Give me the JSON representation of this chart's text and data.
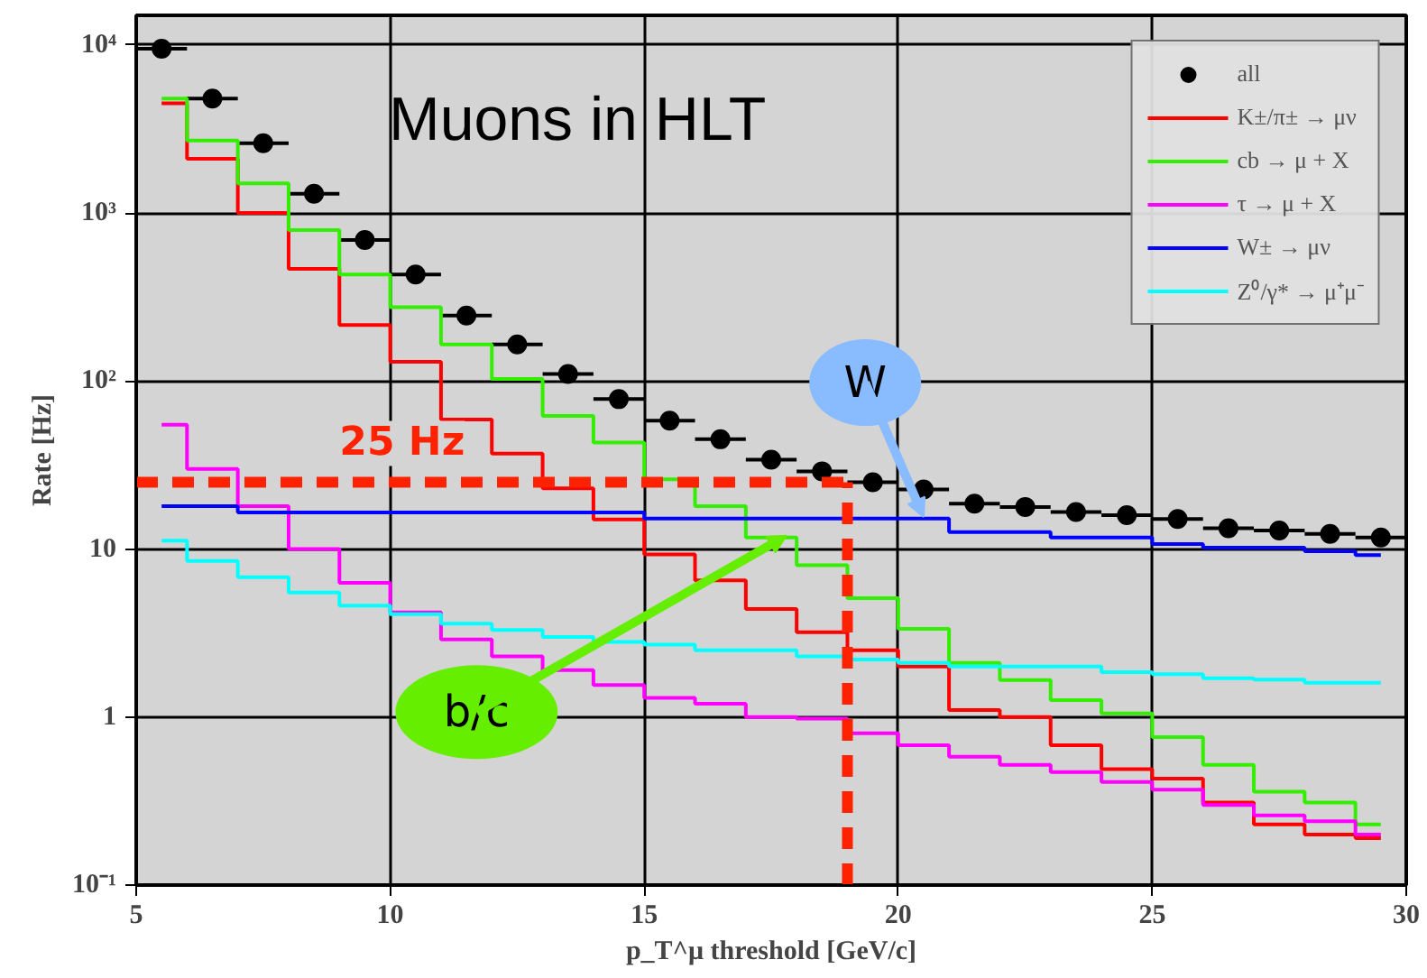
{
  "chart_data": {
    "type": "step",
    "title": "Muons in HLT",
    "xlabel": "p_T^μ threshold [GeV/c]",
    "ylabel": "Rate [Hz]",
    "x": [
      5.5,
      6.5,
      7.5,
      8.5,
      9.5,
      10.5,
      11.5,
      12.5,
      13.5,
      14.5,
      15.5,
      16.5,
      17.5,
      18.5,
      19.5,
      20.5,
      21.5,
      22.5,
      23.5,
      24.5,
      25.5,
      26.5,
      27.5,
      28.5,
      29.5
    ],
    "xlim": [
      5,
      30
    ],
    "xticks": [
      5,
      10,
      15,
      20,
      25,
      30
    ],
    "ylim": [
      0.1,
      15000
    ],
    "yticks": [
      {
        "value": 0.1,
        "label": "10⁻¹"
      },
      1,
      10,
      {
        "value": 100,
        "label": "10²"
      },
      {
        "value": 1000,
        "label": "10³"
      },
      {
        "value": 10000,
        "label": "10⁴"
      }
    ],
    "log": "y",
    "grid": true,
    "legend": "top right",
    "series": [
      {
        "name": "all",
        "type": "scatter",
        "marker": "circle",
        "color": "#000000",
        "values": [
          9500,
          4800,
          2600,
          1300,
          690,
          430,
          245,
          165,
          110,
          78,
          58,
          45,
          34,
          29,
          25,
          22.6,
          18.6,
          17.8,
          16.6,
          15.9,
          15.1,
          13.3,
          12.9,
          12.3,
          11.7
        ],
        "xerrors": [
          0.5,
          0.5,
          0.5,
          0.5,
          0.5,
          0.5,
          0.5,
          0.5,
          0.5,
          0.5,
          0.5,
          0.5,
          0.5,
          0.5,
          0.5,
          0.5,
          0.5,
          0.5,
          0.5,
          0.5,
          0.5,
          0.5,
          0.5,
          0.5,
          0.5
        ]
      },
      {
        "name": "K±/π± → μν",
        "color": "#ff0000",
        "values": [
          4500,
          2100,
          1000,
          465,
          215,
          130,
          59,
          37,
          23,
          15,
          9.3,
          6.5,
          4.4,
          3.2,
          2.5,
          2.0,
          1.1,
          1.0,
          0.68,
          0.49,
          0.43,
          0.31,
          0.23,
          0.2,
          0.19
        ]
      },
      {
        "name": "cb → μ + X",
        "color": "#33ee00",
        "values": [
          4800,
          2700,
          1500,
          790,
          430,
          275,
          165,
          103,
          62,
          43,
          26,
          18,
          11.7,
          8,
          5.1,
          3.35,
          2.1,
          1.66,
          1.26,
          1.05,
          0.76,
          0.52,
          0.36,
          0.31,
          0.23
        ]
      },
      {
        "name": "τ → μ + X",
        "color": "#ff00ff",
        "values": [
          55,
          30,
          18,
          10,
          6.3,
          4.2,
          2.9,
          2.3,
          1.9,
          1.55,
          1.3,
          1.2,
          1.0,
          0.98,
          0.8,
          0.68,
          0.58,
          0.52,
          0.47,
          0.41,
          0.37,
          0.3,
          0.26,
          0.24,
          0.2
        ]
      },
      {
        "name": "W± → μν",
        "color": "#0000ff",
        "values": [
          18,
          18,
          16.5,
          16.5,
          16.5,
          16.5,
          16.5,
          16.5,
          16.5,
          16.5,
          15.2,
          15.2,
          15.2,
          15.2,
          15.2,
          15.2,
          12.6,
          12.6,
          11.7,
          11.7,
          10.7,
          10.2,
          10.2,
          9.7,
          9.2
        ]
      },
      {
        "name": "Z⁰/γ* → μ⁺μ⁻",
        "color": "#00ffff",
        "values": [
          11.2,
          8.5,
          6.8,
          5.5,
          4.6,
          4.1,
          3.6,
          3.3,
          3.0,
          2.8,
          2.7,
          2.5,
          2.5,
          2.3,
          2.2,
          2.1,
          2.0,
          2.0,
          2.0,
          1.85,
          1.8,
          1.7,
          1.67,
          1.6,
          1.6
        ]
      }
    ],
    "ref_lines": [
      {
        "axis": "y",
        "value": 25,
        "label": "25 Hz",
        "color": "#ff2200",
        "line_style": "dashed"
      },
      {
        "axis": "x",
        "value": 19,
        "color": "#ff2200",
        "line_style": "dashed"
      }
    ],
    "annotations": [
      {
        "text": "W",
        "x": 20.5,
        "y": 15.5
      },
      {
        "text": "b/c",
        "x": 17.8,
        "y": 12
      }
    ]
  }
}
